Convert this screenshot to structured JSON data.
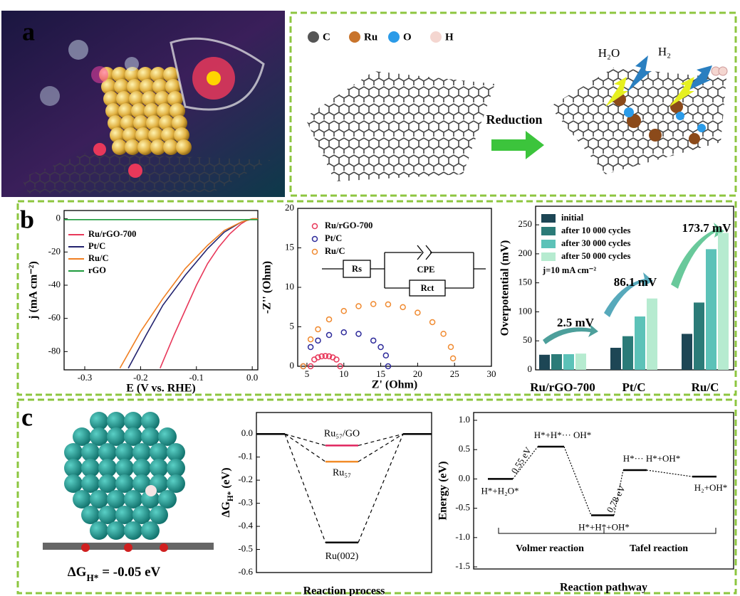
{
  "panel_labels": [
    "a",
    "b",
    "c"
  ],
  "scheme": {
    "legend": [
      "C",
      "Ru",
      "O",
      "H"
    ],
    "legend_colors": [
      "#555555",
      "#c8742c",
      "#2b9be8",
      "#f4d6d0"
    ],
    "reduction": "Reduction",
    "h2o": "H₂O",
    "h2": "H₂"
  },
  "structure": {
    "caption": [
      {
        "text": "ΔG"
      },
      {
        "text": "H*",
        "shift": "sub"
      },
      {
        "text": " = -0.05 eV"
      }
    ]
  },
  "chart_data": [
    {
      "type": "line",
      "xlabel": "E (V vs. RHE)",
      "ylabel": "j (mA cm⁻²)",
      "xlim": [
        -0.337,
        0.01
      ],
      "ylim": [
        -91,
        5
      ],
      "xticks": [
        -0.3,
        -0.2,
        -0.1,
        {
          "value": 0,
          "label": "0.0"
        }
      ],
      "yticks": [
        0,
        -20,
        -40,
        -60,
        -80
      ],
      "series": [
        {
          "name": "Ru/rGO-700",
          "color": "#e8385a",
          "x": [
            -0.165,
            -0.14,
            -0.12,
            -0.1,
            -0.08,
            -0.06,
            -0.04,
            -0.02,
            -0.01,
            0,
            0.01
          ],
          "values": [
            -90,
            -70,
            -55,
            -40,
            -27,
            -17,
            -9,
            -3,
            -1,
            0,
            0
          ]
        },
        {
          "name": "Pt/C",
          "color": "#22226e",
          "x": [
            -0.222,
            -0.19,
            -0.16,
            -0.12,
            -0.08,
            -0.05,
            -0.02,
            0,
            0.01
          ],
          "values": [
            -90,
            -70,
            -52,
            -34,
            -18,
            -8,
            -2,
            0,
            0
          ]
        },
        {
          "name": "Ru/C",
          "color": "#f07f22",
          "x": [
            -0.237,
            -0.2,
            -0.16,
            -0.12,
            -0.08,
            -0.05,
            -0.02,
            0,
            0.01
          ],
          "values": [
            -90,
            -68,
            -48,
            -30,
            -16,
            -7,
            -2,
            0,
            0
          ]
        },
        {
          "name": "rGO",
          "color": "#1e9a3c",
          "x": [
            -0.337,
            0.01
          ],
          "values": [
            -0.5,
            -0.5
          ]
        }
      ]
    },
    {
      "type": "scatter",
      "xlabel": "Z' (Ohm)",
      "ylabel": "-Z'' (Ohm)",
      "xlim": [
        3.75,
        30
      ],
      "ylim": [
        0,
        20
      ],
      "xticks": [
        5,
        10,
        15,
        20,
        25,
        30
      ],
      "yticks": [
        0,
        5,
        10,
        15,
        20
      ],
      "circuit": {
        "rs": "Rs",
        "cpe": "CPE",
        "rct": "Rct"
      },
      "series": [
        {
          "name": "Ru/rGO-700",
          "color": "#e8385a",
          "x": [
            5.5,
            6,
            6.5,
            7,
            7.5,
            8,
            8.5,
            9,
            9.5
          ],
          "values": [
            0,
            0.86,
            1.13,
            1.26,
            1.3,
            1.26,
            1.13,
            0.86,
            0
          ]
        },
        {
          "name": "Pt/C",
          "color": "#2d2a9a",
          "x": [
            4.5,
            5.5,
            6.5,
            8,
            10,
            12,
            14,
            15,
            15.7,
            16
          ],
          "values": [
            0,
            2.43,
            3.26,
            3.96,
            4.3,
            4.1,
            3.26,
            2.43,
            1.37,
            0
          ]
        },
        {
          "name": "Ru/C",
          "color": "#f08a30",
          "x": [
            4.5,
            5.5,
            6.5,
            8,
            10,
            12,
            14,
            16,
            18,
            20,
            22,
            23.5,
            24.5,
            24.8
          ],
          "values": [
            0,
            3.41,
            4.69,
            5.94,
            7,
            7.61,
            7.88,
            7.84,
            7.49,
            6.79,
            5.59,
            4.11,
            2.44,
            1
          ]
        }
      ]
    },
    {
      "type": "bar",
      "ylabel": "Overpotential (mV)",
      "ylim": [
        0,
        282
      ],
      "yticks": [
        0,
        50,
        100,
        150,
        200,
        250
      ],
      "categories": [
        "Ru/rGO-700",
        "Pt/C",
        "Ru/C"
      ],
      "note": "j=10 mA cm⁻²",
      "series": [
        {
          "name": "initial",
          "color": "#1d4655",
          "values": [
            26,
            38,
            62
          ]
        },
        {
          "name": "after 10 000 cycles",
          "color": "#2b7b78",
          "values": [
            27,
            58,
            116
          ]
        },
        {
          "name": "after 30 000 cycles",
          "color": "#5cc2b8",
          "values": [
            27,
            92,
            208
          ]
        },
        {
          "name": "after 50 000 cycles",
          "color": "#b6ebd0",
          "values": [
            28,
            123,
            236
          ]
        }
      ],
      "annotations": [
        {
          "text": "2.5 mV",
          "color": "#2a6f7f"
        },
        {
          "text": "86.1 mV",
          "color": "#2e86a8"
        },
        {
          "text": "173.7 mV",
          "color": "#5fc98a"
        }
      ]
    },
    {
      "type": "energy-levels",
      "xlabel": "Reaction process",
      "ylabel": [
        {
          "text": "ΔG"
        },
        {
          "text": "H*",
          "shift": "sub"
        },
        {
          "text": " (eV)"
        }
      ],
      "ylim": [
        -0.6,
        0.093
      ],
      "yticks": [
        {
          "value": 0,
          "label": "0.0"
        },
        -0.1,
        -0.2,
        -0.3,
        -0.4,
        -0.5,
        -0.6
      ],
      "level_color": "#000000",
      "categories": [
        null,
        null,
        null
      ],
      "series": [
        {
          "name": "Ru₅₇/GO",
          "color": "#e0245e",
          "values": [
            0,
            -0.05,
            0
          ]
        },
        {
          "name": "Ru₅₇",
          "color": "#f28c28",
          "values": [
            0,
            -0.12,
            0
          ]
        },
        {
          "name": "Ru(002)",
          "color": "#000000",
          "values": [
            0,
            -0.47,
            0
          ]
        }
      ]
    },
    {
      "type": "energy-pathway",
      "xlabel": "Reaction pathway",
      "ylabel": "Energy (eV)",
      "ylim": [
        -1.536,
        1.133
      ],
      "yticks": [
        {
          "value": 1,
          "label": "1.0"
        },
        0.5,
        {
          "value": 0,
          "label": "0.0"
        },
        -0.5,
        {
          "value": -1,
          "label": "-1.0"
        },
        -1.5
      ],
      "categories": [
        "H*+H₂O*",
        "H*+H*··· OH*",
        "H*+H*+OH*",
        "H*··· H*+OH*",
        "H₂+OH*"
      ],
      "values": [
        0,
        0.55,
        -0.62,
        0.15,
        0.04
      ],
      "barriers": [
        "0.55 eV",
        "0.78 eV"
      ],
      "reactions": [
        "Volmer reaction",
        "Tafel reaction"
      ]
    }
  ]
}
